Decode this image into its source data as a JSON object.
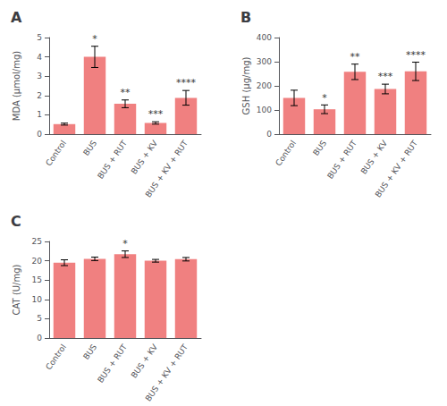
{
  "chart_data": [
    {
      "type": "bar",
      "title": "A",
      "ylabel": "MDA (μmol/mg)",
      "categories": [
        "Control",
        "BUS",
        "BUS + RUT",
        "BUS + KV",
        "BUS + KV + RUT"
      ],
      "values": [
        0.52,
        4.0,
        1.57,
        0.58,
        1.88
      ],
      "errors": [
        0.05,
        0.55,
        0.2,
        0.06,
        0.38
      ],
      "color": "#F08080",
      "ylim": [
        0,
        5
      ],
      "yticks": [
        0,
        1,
        2,
        3,
        4,
        5
      ],
      "grid": false,
      "annotations": [
        {
          "x": "BUS",
          "text": "*"
        },
        {
          "x": "BUS + RUT",
          "text": "**"
        },
        {
          "x": "BUS + KV",
          "text": "***"
        },
        {
          "x": "BUS + KV + RUT",
          "text": "****"
        }
      ]
    },
    {
      "type": "bar",
      "title": "B",
      "ylabel": "GSH (μg/mg)",
      "categories": [
        "Control",
        "BUS",
        "BUS + RUT",
        "BUS + KV",
        "BUS + KV + RUT"
      ],
      "values": [
        150,
        103,
        258,
        187,
        260
      ],
      "errors": [
        32,
        18,
        32,
        20,
        38
      ],
      "color": "#F08080",
      "ylim": [
        0,
        400
      ],
      "yticks": [
        0,
        100,
        200,
        300,
        400
      ],
      "grid": false,
      "annotations": [
        {
          "x": "BUS",
          "text": "*"
        },
        {
          "x": "BUS + RUT",
          "text": "**"
        },
        {
          "x": "BUS + KV",
          "text": "***"
        },
        {
          "x": "BUS + KV + RUT",
          "text": "****"
        }
      ]
    },
    {
      "type": "bar",
      "title": "C",
      "ylabel": "CAT (U/mg)",
      "categories": [
        "Control",
        "BUS",
        "BUS + RUT",
        "BUS + KV",
        "BUS + KV + RUT"
      ],
      "values": [
        19.5,
        20.5,
        21.7,
        20.0,
        20.4
      ],
      "errors": [
        0.75,
        0.45,
        0.85,
        0.35,
        0.45
      ],
      "color": "#F08080",
      "ylim": [
        0,
        25
      ],
      "yticks": [
        0,
        5,
        10,
        15,
        20,
        25
      ],
      "grid": false,
      "annotations": [
        {
          "x": "BUS + RUT",
          "text": "*"
        }
      ]
    }
  ]
}
